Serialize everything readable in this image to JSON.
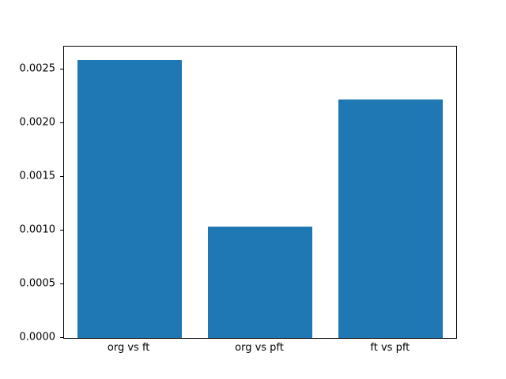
{
  "chart_data": {
    "type": "bar",
    "categories": [
      "org vs ft",
      "org vs pft",
      "ft vs pft"
    ],
    "values": [
      0.00259,
      0.00104,
      0.00222
    ],
    "title": "",
    "xlabel": "",
    "ylabel": "",
    "ylim": [
      0,
      0.002716
    ],
    "xlim": [
      -0.5,
      2.5
    ],
    "bar_width_fraction": 0.8,
    "yticks": [
      "0.0000",
      "0.0005",
      "0.0010",
      "0.0015",
      "0.0020",
      "0.0025"
    ],
    "grid": false,
    "legend_position": "none",
    "bar_color": "#1f77b4",
    "axis_color": "#000000",
    "background_color": "#ffffff"
  }
}
